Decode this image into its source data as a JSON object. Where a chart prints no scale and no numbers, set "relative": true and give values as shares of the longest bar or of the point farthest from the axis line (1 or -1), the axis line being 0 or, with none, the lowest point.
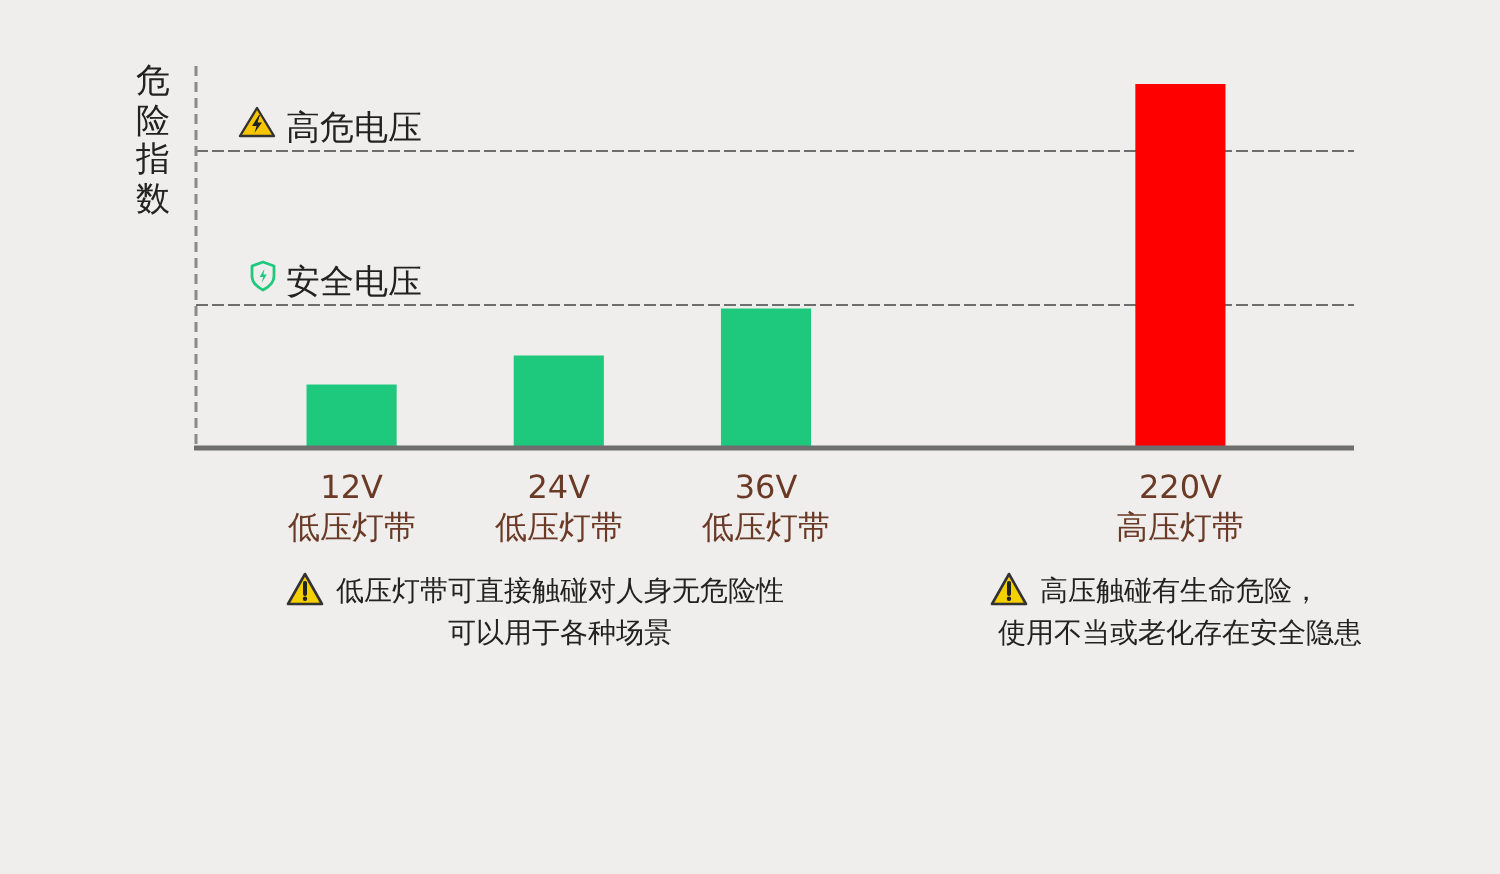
{
  "chart_data": {
    "type": "bar",
    "ylabel": "危险指数",
    "categories": [
      "12V\n低压灯带",
      "24V\n低压灯带",
      "36V\n低压灯带",
      null,
      "220V\n高压灯带"
    ],
    "values": [
      0.17,
      0.25,
      0.38,
      null,
      1
    ],
    "colors": [
      "#1ec97e",
      "#1ec97e",
      "#1ec97e",
      null,
      "#ff0000"
    ],
    "relative": true,
    "ref_lines": [
      {
        "axis": "y",
        "value": 0.82,
        "label": "高危电压",
        "color": "#6e6e6e",
        "line_style": "dashed"
      },
      {
        "axis": "y",
        "value": 0.39,
        "label": "安全电压",
        "color": "#6e6e6e",
        "line_style": "dashed"
      }
    ],
    "annotations": [
      "低压灯带可直接触碰对人身无危险性可以用于各种场景",
      "高压触碰有生命危险，使用不当或老化存在安全隐患"
    ]
  }
}
